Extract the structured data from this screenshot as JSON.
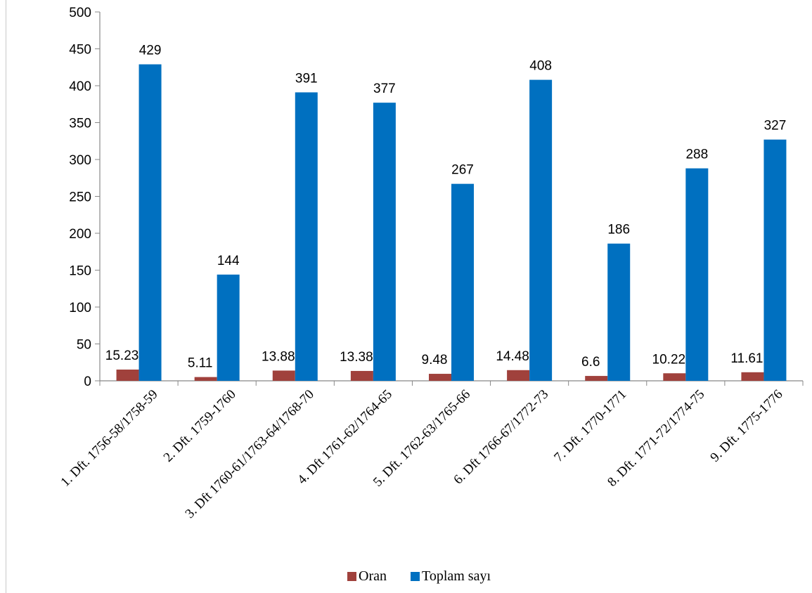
{
  "chart_data": {
    "type": "bar",
    "categories": [
      "1. Dft. 1756-58/1758-59",
      "2. Dft. 1759-1760",
      "3. Dft 1760-61/1763-64/1768-70",
      "4. Dft 1761-62/1764-65",
      "5. Dft. 1762-63/1765-66",
      "6. Dft 1766-67/1772-73",
      "7. Dft. 1770-1771",
      "8. Dft. 1771-72/1774-75",
      "9. Dft. 1775-1776"
    ],
    "series": [
      {
        "name": "Oran",
        "color": "#a0413c",
        "values": [
          15.23,
          5.11,
          13.88,
          13.38,
          9.48,
          14.48,
          6.6,
          10.22,
          11.61
        ],
        "labels": [
          "15.23",
          "5.11",
          "13.88",
          "13.38",
          "9.48",
          "14.48",
          "6.6",
          "10.22",
          "11.61"
        ]
      },
      {
        "name": "Toplam sayı",
        "color": "#0070c0",
        "values": [
          429,
          144,
          391,
          377,
          267,
          408,
          186,
          288,
          327
        ],
        "labels": [
          "429",
          "144",
          "391",
          "377",
          "267",
          "408",
          "186",
          "288",
          "327"
        ]
      }
    ],
    "ylim": [
      0,
      500
    ],
    "yticks": [
      "0",
      "50",
      "100",
      "150",
      "200",
      "250",
      "300",
      "350",
      "400",
      "450",
      "500"
    ],
    "grid": false,
    "legend_position": "bottom"
  }
}
